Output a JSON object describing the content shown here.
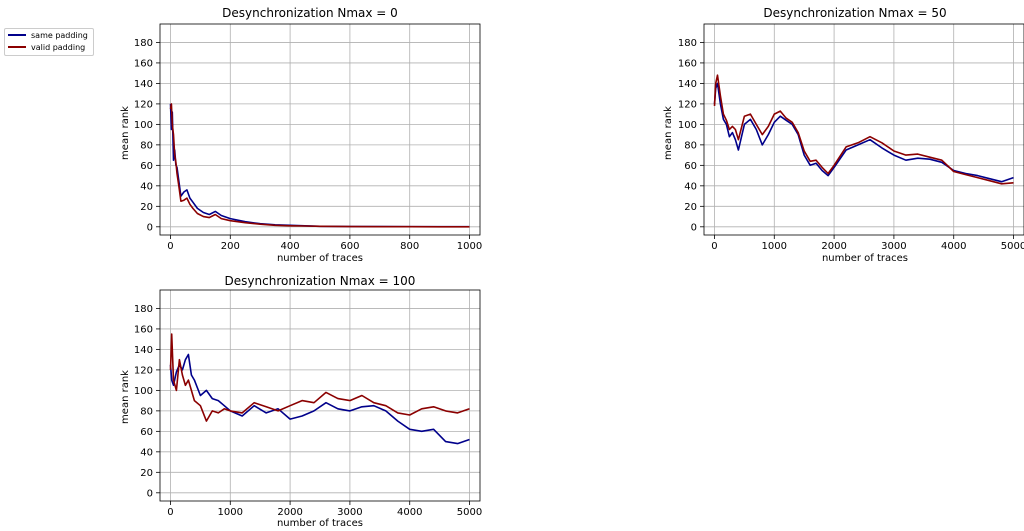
{
  "legend": {
    "entries": [
      {
        "label": "same padding",
        "color": "#00008b"
      },
      {
        "label": "valid padding",
        "color": "#8b0000"
      }
    ]
  },
  "colors": {
    "grid": "#b0b0b0",
    "axes": "#000000"
  },
  "chart_data": [
    {
      "type": "line",
      "title": "Desynchronization Nmax = 0",
      "xlabel": "number of traces",
      "ylabel": "mean rank",
      "xlim": [
        -35,
        1035
      ],
      "ylim": [
        -8,
        198
      ],
      "xticks": [
        0,
        200,
        400,
        600,
        800,
        1000
      ],
      "yticks": [
        0,
        20,
        40,
        60,
        80,
        100,
        120,
        140,
        160,
        180
      ],
      "grid": true,
      "series": [
        {
          "name": "same padding",
          "color": "#00008b",
          "x": [
            0,
            3,
            6,
            10,
            14,
            18,
            22,
            28,
            35,
            45,
            55,
            65,
            75,
            90,
            110,
            130,
            150,
            170,
            200,
            250,
            300,
            350,
            400,
            450,
            500,
            600,
            700,
            800,
            900,
            1000
          ],
          "y": [
            120,
            95,
            112,
            65,
            75,
            60,
            58,
            45,
            30,
            34,
            36,
            28,
            24,
            18,
            14,
            12,
            15,
            11,
            8,
            5,
            3,
            2,
            1.5,
            1,
            0.5,
            0.3,
            0.2,
            0.1,
            0.1,
            0.1
          ]
        },
        {
          "name": "valid padding",
          "color": "#8b0000",
          "x": [
            0,
            3,
            6,
            10,
            14,
            18,
            22,
            28,
            35,
            45,
            55,
            65,
            75,
            90,
            110,
            130,
            150,
            170,
            200,
            250,
            300,
            350,
            400,
            450,
            500,
            600,
            700,
            800,
            900,
            1000
          ],
          "y": [
            115,
            120,
            100,
            90,
            70,
            63,
            52,
            40,
            25,
            26,
            28,
            22,
            18,
            13,
            10,
            9,
            12,
            8,
            6,
            4,
            2.5,
            1.5,
            1,
            0.8,
            0.5,
            0.2,
            0.1,
            0.1,
            0,
            0
          ]
        }
      ]
    },
    {
      "type": "line",
      "title": "Desynchronization Nmax = 50",
      "xlabel": "number of traces",
      "ylabel": "mean rank",
      "xlim": [
        -175,
        5175
      ],
      "ylim": [
        -8,
        198
      ],
      "xticks": [
        0,
        1000,
        2000,
        3000,
        4000,
        5000
      ],
      "yticks": [
        0,
        20,
        40,
        60,
        80,
        100,
        120,
        140,
        160,
        180
      ],
      "grid": true,
      "series": [
        {
          "name": "same padding",
          "color": "#00008b",
          "x": [
            0,
            20,
            50,
            100,
            150,
            200,
            250,
            300,
            350,
            400,
            500,
            600,
            700,
            800,
            900,
            1000,
            1100,
            1200,
            1300,
            1400,
            1500,
            1600,
            1700,
            1800,
            1900,
            2000,
            2200,
            2400,
            2600,
            2800,
            3000,
            3200,
            3400,
            3600,
            3800,
            4000,
            4200,
            4400,
            4600,
            4800,
            5000
          ],
          "y": [
            120,
            135,
            140,
            120,
            105,
            100,
            88,
            92,
            85,
            75,
            100,
            105,
            95,
            80,
            90,
            102,
            108,
            104,
            100,
            90,
            70,
            60,
            62,
            55,
            50,
            58,
            75,
            80,
            85,
            77,
            70,
            65,
            67,
            66,
            63,
            55,
            52,
            50,
            47,
            44,
            48
          ]
        },
        {
          "name": "valid padding",
          "color": "#8b0000",
          "x": [
            0,
            20,
            50,
            100,
            150,
            200,
            250,
            300,
            350,
            400,
            500,
            600,
            700,
            800,
            900,
            1000,
            1100,
            1200,
            1300,
            1400,
            1500,
            1600,
            1700,
            1800,
            1900,
            2000,
            2200,
            2400,
            2600,
            2800,
            3000,
            3200,
            3400,
            3600,
            3800,
            4000,
            4200,
            4400,
            4600,
            4800,
            5000
          ],
          "y": [
            118,
            140,
            148,
            128,
            110,
            104,
            95,
            98,
            95,
            85,
            108,
            110,
            100,
            90,
            98,
            110,
            113,
            106,
            102,
            92,
            74,
            64,
            65,
            58,
            52,
            60,
            78,
            82,
            88,
            82,
            74,
            70,
            71,
            68,
            65,
            54,
            51,
            48,
            45,
            42,
            43
          ]
        }
      ]
    },
    {
      "type": "line",
      "title": "Desynchronization Nmax = 100",
      "xlabel": "number of traces",
      "ylabel": "mean rank",
      "xlim": [
        -175,
        5175
      ],
      "ylim": [
        -8,
        198
      ],
      "xticks": [
        0,
        1000,
        2000,
        3000,
        4000,
        5000
      ],
      "yticks": [
        0,
        20,
        40,
        60,
        80,
        100,
        120,
        140,
        160,
        180
      ],
      "grid": true,
      "series": [
        {
          "name": "same padding",
          "color": "#00008b",
          "x": [
            0,
            20,
            50,
            100,
            150,
            200,
            250,
            300,
            350,
            400,
            500,
            600,
            700,
            800,
            900,
            1000,
            1200,
            1400,
            1600,
            1800,
            2000,
            2200,
            2400,
            2600,
            2800,
            3000,
            3200,
            3400,
            3600,
            3800,
            4000,
            4200,
            4400,
            4600,
            4800,
            5000
          ],
          "y": [
            125,
            110,
            105,
            118,
            125,
            120,
            130,
            135,
            115,
            110,
            95,
            100,
            92,
            90,
            85,
            80,
            75,
            85,
            78,
            82,
            72,
            75,
            80,
            88,
            82,
            80,
            84,
            85,
            80,
            70,
            62,
            60,
            62,
            50,
            48,
            52
          ]
        },
        {
          "name": "valid padding",
          "color": "#8b0000",
          "x": [
            0,
            20,
            50,
            100,
            150,
            200,
            250,
            300,
            350,
            400,
            500,
            600,
            700,
            800,
            900,
            1000,
            1200,
            1400,
            1600,
            1800,
            2000,
            2200,
            2400,
            2600,
            2800,
            3000,
            3200,
            3400,
            3600,
            3800,
            4000,
            4200,
            4400,
            4600,
            4800,
            5000
          ],
          "y": [
            120,
            155,
            110,
            100,
            130,
            115,
            105,
            110,
            100,
            90,
            85,
            70,
            80,
            78,
            82,
            80,
            78,
            88,
            84,
            80,
            85,
            90,
            88,
            98,
            92,
            90,
            95,
            88,
            85,
            78,
            76,
            82,
            84,
            80,
            78,
            82
          ]
        }
      ]
    }
  ]
}
